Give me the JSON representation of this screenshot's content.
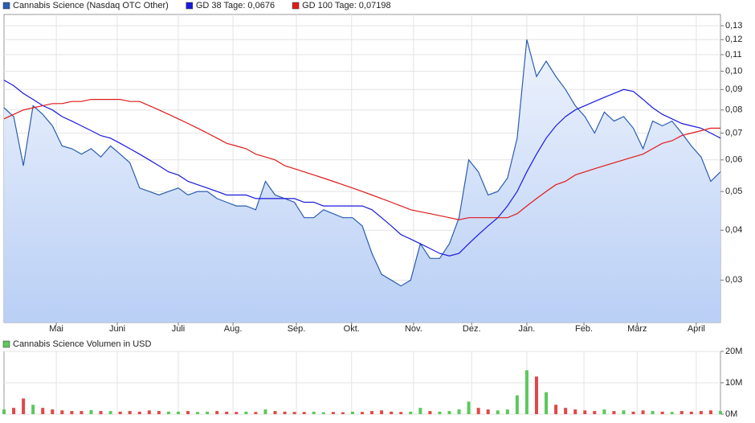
{
  "chart_data": [
    {
      "type": "line",
      "log_scale": true,
      "grid": true,
      "legend": "top-left",
      "xlim": [
        0,
        74
      ],
      "xticks": [
        {
          "value": 5.4,
          "label": "Mai"
        },
        {
          "value": 11.7,
          "label": "Juni"
        },
        {
          "value": 18.0,
          "label": "Juli"
        },
        {
          "value": 23.65,
          "label": "Aug."
        },
        {
          "value": 30.2,
          "label": "Sep."
        },
        {
          "value": 35.9,
          "label": "Okt."
        },
        {
          "value": 42.3,
          "label": "Nov."
        },
        {
          "value": 48.3,
          "label": "Dez."
        },
        {
          "value": 54.0,
          "label": "Jan."
        },
        {
          "value": 59.9,
          "label": "Feb."
        },
        {
          "value": 65.4,
          "label": "März"
        },
        {
          "value": 71.5,
          "label": "April"
        }
      ],
      "ylim": [
        0.0235,
        0.1387
      ],
      "yticks": [
        {
          "value": 0.03,
          "label": "0,03"
        },
        {
          "value": 0.04,
          "label": "0,04"
        },
        {
          "value": 0.05,
          "label": "0,05"
        },
        {
          "value": 0.06,
          "label": "0,06"
        },
        {
          "value": 0.07,
          "label": "0,07"
        },
        {
          "value": 0.08,
          "label": "0,08"
        },
        {
          "value": 0.09,
          "label": "0,09"
        },
        {
          "value": 0.1,
          "label": "0,10"
        },
        {
          "value": 0.11,
          "label": "0,11"
        },
        {
          "value": 0.12,
          "label": "0,12"
        },
        {
          "value": 0.13,
          "label": "0,13"
        }
      ],
      "series": [
        {
          "name": "Cannabis Science (Nasdaq OTC Other)",
          "color": "#2a5db0",
          "fill": true,
          "values": [
            0.081,
            0.077,
            0.058,
            0.082,
            0.078,
            0.073,
            0.065,
            0.064,
            0.062,
            0.064,
            0.061,
            0.065,
            0.062,
            0.059,
            0.051,
            0.05,
            0.049,
            0.05,
            0.051,
            0.049,
            0.05,
            0.05,
            0.048,
            0.047,
            0.046,
            0.046,
            0.045,
            0.053,
            0.049,
            0.048,
            0.047,
            0.043,
            0.043,
            0.045,
            0.044,
            0.043,
            0.043,
            0.041,
            0.035,
            0.031,
            0.03,
            0.029,
            0.03,
            0.037,
            0.034,
            0.034,
            0.037,
            0.043,
            0.06,
            0.056,
            0.049,
            0.05,
            0.054,
            0.068,
            0.12,
            0.097,
            0.106,
            0.097,
            0.09,
            0.082,
            0.077,
            0.07,
            0.079,
            0.075,
            0.077,
            0.072,
            0.064,
            0.075,
            0.073,
            0.075,
            0.07,
            0.065,
            0.061,
            0.053,
            0.056
          ]
        },
        {
          "name": "GD 38 Tage: 0,0676",
          "color": "#1a1adc",
          "values": [
            0.095,
            0.092,
            0.088,
            0.085,
            0.082,
            0.08,
            0.077,
            0.075,
            0.073,
            0.071,
            0.069,
            0.068,
            0.066,
            0.064,
            0.062,
            0.06,
            0.058,
            0.056,
            0.055,
            0.053,
            0.052,
            0.051,
            0.05,
            0.049,
            0.049,
            0.049,
            0.048,
            0.048,
            0.048,
            0.048,
            0.048,
            0.047,
            0.047,
            0.046,
            0.046,
            0.046,
            0.046,
            0.046,
            0.045,
            0.043,
            0.041,
            0.039,
            0.038,
            0.037,
            0.036,
            0.035,
            0.0345,
            0.035,
            0.037,
            0.039,
            0.041,
            0.043,
            0.046,
            0.05,
            0.056,
            0.062,
            0.068,
            0.073,
            0.077,
            0.08,
            0.082,
            0.084,
            0.086,
            0.088,
            0.09,
            0.089,
            0.085,
            0.081,
            0.078,
            0.076,
            0.074,
            0.073,
            0.072,
            0.07,
            0.068
          ]
        },
        {
          "name": "GD 100 Tage: 0,07198",
          "color": "#e01a1a",
          "values": [
            0.076,
            0.078,
            0.08,
            0.081,
            0.082,
            0.083,
            0.083,
            0.084,
            0.084,
            0.085,
            0.085,
            0.085,
            0.085,
            0.084,
            0.084,
            0.082,
            0.08,
            0.078,
            0.076,
            0.074,
            0.072,
            0.07,
            0.068,
            0.066,
            0.065,
            0.064,
            0.062,
            0.061,
            0.06,
            0.058,
            0.057,
            0.056,
            0.055,
            0.054,
            0.053,
            0.052,
            0.051,
            0.05,
            0.049,
            0.048,
            0.047,
            0.046,
            0.045,
            0.0445,
            0.044,
            0.0435,
            0.043,
            0.0425,
            0.043,
            0.043,
            0.043,
            0.043,
            0.043,
            0.044,
            0.046,
            0.048,
            0.05,
            0.052,
            0.053,
            0.055,
            0.056,
            0.057,
            0.058,
            0.059,
            0.06,
            0.061,
            0.062,
            0.064,
            0.066,
            0.067,
            0.069,
            0.07,
            0.071,
            0.072,
            0.072
          ]
        }
      ]
    },
    {
      "type": "bar",
      "grid": true,
      "legend": "top-left",
      "xlim": [
        0,
        74
      ],
      "ylim": [
        0,
        20000000
      ],
      "yticks": [
        {
          "value": 0,
          "label": "0M"
        },
        {
          "value": 10000000,
          "label": "10M"
        },
        {
          "value": 20000000,
          "label": "20M"
        }
      ],
      "series": [
        {
          "name": "Cannabis Science Volumen in USD",
          "color": "#5cc85c",
          "down_color": "#e04848",
          "values": [
            1500000,
            2000000,
            5000000,
            3000000,
            2000000,
            1500000,
            1200000,
            1000000,
            1000000,
            1300000,
            1000000,
            1000000,
            800000,
            1000000,
            800000,
            1200000,
            1000000,
            800000,
            800000,
            1000000,
            700000,
            800000,
            1000000,
            800000,
            700000,
            800000,
            700000,
            1500000,
            1000000,
            800000,
            700000,
            700000,
            800000,
            600000,
            700000,
            600000,
            800000,
            700000,
            1000000,
            1200000,
            800000,
            700000,
            800000,
            2000000,
            1000000,
            800000,
            1000000,
            1500000,
            4000000,
            2000000,
            1500000,
            1200000,
            1500000,
            6000000,
            14000000,
            12000000,
            7000000,
            3000000,
            2000000,
            1500000,
            1200000,
            1000000,
            1500000,
            1000000,
            1200000,
            800000,
            1200000,
            1000000,
            800000,
            700000,
            1000000,
            800000,
            1000000,
            1200000,
            1000000
          ]
        }
      ]
    }
  ]
}
